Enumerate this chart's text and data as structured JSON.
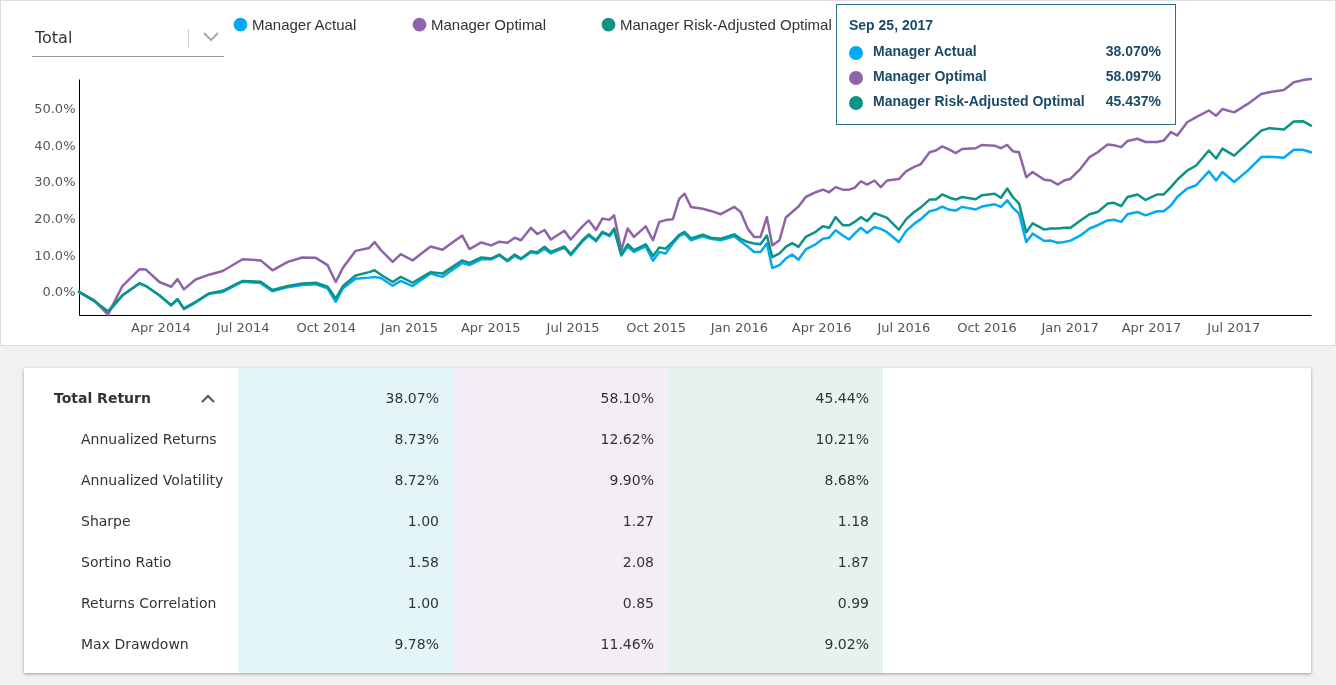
{
  "chart_data": [
    {
      "type": "line",
      "line_style": "solid",
      "legend": "top",
      "grid": false,
      "xlim": [
        "2014-01-01",
        "2017-09-25"
      ],
      "ylim": [
        -6.3,
        58.1
      ],
      "xticks": [
        {
          "value": "2014-04-01",
          "label": "Apr 2014"
        },
        {
          "value": "2014-07-01",
          "label": "Jul 2014"
        },
        {
          "value": "2014-10-01",
          "label": "Oct 2014"
        },
        {
          "value": "2015-01-01",
          "label": "Jan 2015"
        },
        {
          "value": "2015-04-01",
          "label": "Apr 2015"
        },
        {
          "value": "2015-07-01",
          "label": "Jul 2015"
        },
        {
          "value": "2015-10-01",
          "label": "Oct 2015"
        },
        {
          "value": "2016-01-01",
          "label": "Jan 2016"
        },
        {
          "value": "2016-04-01",
          "label": "Apr 2016"
        },
        {
          "value": "2016-07-01",
          "label": "Jul 2016"
        },
        {
          "value": "2016-10-01",
          "label": "Oct 2016"
        },
        {
          "value": "2017-01-01",
          "label": "Jan 2017"
        },
        {
          "value": "2017-04-01",
          "label": "Apr 2017"
        },
        {
          "value": "2017-07-01",
          "label": "Jul 2017"
        }
      ],
      "yticks": [
        {
          "value": 0,
          "label": "0.0%"
        },
        {
          "value": 10,
          "label": "10.0%"
        },
        {
          "value": 20,
          "label": "20.0%"
        },
        {
          "value": 30,
          "label": "30.0%"
        },
        {
          "value": 40,
          "label": "40.0%"
        },
        {
          "value": 50,
          "label": "50.0%"
        }
      ],
      "x": [
        "2014-01-01",
        "2014-01-18",
        "2014-02-02",
        "2014-02-18",
        "2014-03-09",
        "2014-03-16",
        "2014-03-31",
        "2014-04-13",
        "2014-04-20",
        "2014-04-27",
        "2014-05-10",
        "2014-05-25",
        "2014-06-09",
        "2014-07-01",
        "2014-07-21",
        "2014-08-03",
        "2014-08-20",
        "2014-09-05",
        "2014-09-20",
        "2014-10-03",
        "2014-10-12",
        "2014-10-20",
        "2014-11-03",
        "2014-11-18",
        "2014-11-24",
        "2014-12-01",
        "2014-12-14",
        "2014-12-23",
        "2015-01-05",
        "2015-01-25",
        "2015-02-07",
        "2015-03-01",
        "2015-03-09",
        "2015-03-22",
        "2015-04-02",
        "2015-04-11",
        "2015-04-20",
        "2015-04-28",
        "2015-05-05",
        "2015-05-16",
        "2015-05-23",
        "2015-05-31",
        "2015-06-07",
        "2015-06-22",
        "2015-06-29",
        "2015-07-12",
        "2015-07-19",
        "2015-07-27",
        "2015-08-03",
        "2015-08-11",
        "2015-08-16",
        "2015-08-24",
        "2015-08-31",
        "2015-09-07",
        "2015-09-20",
        "2015-09-28",
        "2015-10-05",
        "2015-10-12",
        "2015-10-20",
        "2015-10-27",
        "2015-11-02",
        "2015-11-09",
        "2015-11-22",
        "2015-12-01",
        "2015-12-12",
        "2015-12-27",
        "2016-01-03",
        "2016-01-11",
        "2016-01-18",
        "2016-01-25",
        "2016-02-01",
        "2016-02-07",
        "2016-02-15",
        "2016-02-22",
        "2016-02-29",
        "2016-03-07",
        "2016-03-15",
        "2016-03-26",
        "2016-04-03",
        "2016-04-10",
        "2016-04-17",
        "2016-04-25",
        "2016-05-02",
        "2016-05-08",
        "2016-05-15",
        "2016-05-22",
        "2016-05-30",
        "2016-06-06",
        "2016-06-13",
        "2016-06-26",
        "2016-07-04",
        "2016-07-13",
        "2016-07-20",
        "2016-07-30",
        "2016-08-06",
        "2016-08-13",
        "2016-08-21",
        "2016-08-28",
        "2016-09-04",
        "2016-09-19",
        "2016-09-26",
        "2016-10-10",
        "2016-10-17",
        "2016-10-24",
        "2016-10-30",
        "2016-11-06",
        "2016-11-14",
        "2016-11-21",
        "2016-12-04",
        "2016-12-11",
        "2016-12-19",
        "2016-12-26",
        "2017-01-02",
        "2017-01-13",
        "2017-01-23",
        "2017-02-01",
        "2017-02-12",
        "2017-02-19",
        "2017-02-27",
        "2017-03-06",
        "2017-03-17",
        "2017-03-26",
        "2017-04-08",
        "2017-04-15",
        "2017-04-23",
        "2017-04-30",
        "2017-05-11",
        "2017-05-21",
        "2017-06-04",
        "2017-06-12",
        "2017-06-19",
        "2017-07-02",
        "2017-07-17",
        "2017-08-01",
        "2017-08-10",
        "2017-08-26",
        "2017-09-06",
        "2017-09-16",
        "2017-09-25"
      ],
      "series": [
        {
          "name": "Manager Actual",
          "color": "#03a9f4",
          "values": [
            0,
            -2.5,
            -5.7,
            -1.0,
            2.4,
            1.6,
            -1.0,
            -3.7,
            -2.0,
            -4.7,
            -2.9,
            -0.5,
            0.0,
            2.8,
            2.4,
            0.2,
            1.3,
            1.9,
            2.1,
            1.0,
            -2.7,
            1.0,
            3.6,
            3.9,
            4.1,
            3.8,
            1.7,
            3.0,
            1.6,
            5.0,
            4.1,
            7.9,
            7.3,
            8.9,
            8.9,
            10.0,
            8.4,
            9.8,
            8.9,
            10.8,
            10.5,
            11.8,
            10.5,
            12.1,
            10.0,
            13.8,
            15.4,
            13.8,
            16.1,
            15.2,
            17.0,
            9.9,
            12.4,
            10.9,
            12.4,
            8.5,
            10.9,
            10.5,
            13.2,
            15.2,
            15.9,
            14.1,
            15.2,
            14.5,
            14.1,
            15.2,
            13.8,
            12.3,
            10.9,
            10.9,
            13.2,
            6.5,
            7.3,
            9.1,
            10.2,
            8.8,
            11.6,
            13.0,
            14.5,
            14.8,
            16.8,
            15.4,
            14.3,
            15.9,
            17.5,
            16.1,
            17.7,
            17.2,
            16.3,
            13.6,
            16.6,
            18.6,
            19.8,
            22.0,
            22.4,
            23.3,
            22.4,
            22.2,
            23.2,
            22.5,
            23.3,
            23.9,
            23.2,
            25.0,
            23.0,
            21.4,
            13.6,
            15.9,
            13.9,
            14.0,
            13.4,
            13.6,
            14.0,
            15.4,
            17.3,
            18.2,
            19.5,
            19.7,
            19.1,
            21.2,
            21.8,
            20.9,
            22.0,
            22.0,
            23.6,
            25.9,
            28.2,
            29.1,
            32.9,
            30.4,
            32.7,
            30.0,
            33.1,
            36.8,
            36.9,
            36.6,
            38.8,
            38.8,
            38.1
          ]
        },
        {
          "name": "Manager Optimal",
          "color": "#8e63aa",
          "values": [
            0,
            -2.3,
            -6.2,
            1.6,
            6.2,
            6.1,
            2.7,
            1.4,
            3.5,
            0.7,
            3.4,
            4.7,
            5.7,
            8.9,
            8.6,
            5.9,
            8.2,
            9.4,
            9.3,
            7.3,
            2.7,
            6.6,
            11.2,
            12.0,
            13.6,
            11.4,
            8.2,
            10.3,
            8.6,
            12.4,
            11.5,
            15.4,
            11.7,
            13.5,
            12.7,
            13.7,
            13.4,
            14.8,
            14.1,
            17.5,
            15.8,
            16.9,
            14.3,
            16.7,
            14.3,
            17.9,
            19.5,
            16.9,
            20.0,
            19.7,
            20.9,
            11.4,
            17.3,
            15.0,
            17.9,
            14.1,
            19.1,
            19.6,
            19.8,
            25.4,
            26.8,
            23.2,
            22.7,
            22.1,
            21.2,
            23.2,
            21.8,
            17.2,
            15.0,
            15.0,
            20.4,
            12.7,
            14.1,
            20.3,
            21.8,
            23.3,
            25.9,
            27.2,
            27.9,
            27.2,
            28.6,
            27.9,
            27.9,
            28.4,
            30.2,
            29.3,
            30.4,
            28.6,
            30.4,
            30.8,
            32.9,
            34.1,
            34.8,
            38.1,
            38.6,
            39.7,
            38.8,
            37.9,
            39.0,
            39.2,
            40.1,
            39.9,
            39.2,
            40.1,
            38.4,
            38.1,
            31.3,
            32.7,
            30.6,
            30.4,
            29.3,
            30.4,
            30.9,
            33.6,
            36.8,
            38.1,
            40.2,
            40.0,
            39.5,
            41.2,
            41.8,
            40.9,
            40.9,
            41.3,
            43.6,
            42.7,
            46.3,
            47.7,
            49.5,
            48.1,
            49.9,
            49.0,
            51.3,
            54.0,
            54.5,
            55.1,
            57.2,
            57.8,
            58.1
          ]
        },
        {
          "name": "Manager Risk-Adjusted Optimal",
          "color": "#0b9484",
          "values": [
            0,
            -2.5,
            -5.3,
            -0.9,
            2.3,
            1.6,
            -0.9,
            -3.6,
            -2.0,
            -4.5,
            -2.7,
            -0.4,
            0.3,
            3.0,
            2.8,
            0.5,
            1.6,
            2.3,
            2.5,
            1.4,
            -1.8,
            1.6,
            4.5,
            5.4,
            5.9,
            4.7,
            2.7,
            4.1,
            2.5,
            5.4,
            5.0,
            8.6,
            7.9,
            9.4,
            9.1,
            10.2,
            8.6,
            10.2,
            9.1,
            11.1,
            10.8,
            12.3,
            10.9,
            12.4,
            10.3,
            14.1,
            15.7,
            14.1,
            16.4,
            15.5,
            17.3,
            10.2,
            13.0,
            11.4,
            13.0,
            9.8,
            12.1,
            11.8,
            13.7,
            15.6,
            16.4,
            14.6,
            15.6,
            14.8,
            14.5,
            15.7,
            14.5,
            13.6,
            13.2,
            13.0,
            15.4,
            9.5,
            10.5,
            12.3,
            13.3,
            12.3,
            15.0,
            16.4,
            17.9,
            17.5,
            20.4,
            18.2,
            18.2,
            19.1,
            20.4,
            19.3,
            21.5,
            20.9,
            20.2,
            17.0,
            19.8,
            21.8,
            23.0,
            25.2,
            25.2,
            26.6,
            25.7,
            25.2,
            25.9,
            25.3,
            26.4,
            26.8,
            25.7,
            28.2,
            25.9,
            24.1,
            16.3,
            18.7,
            17.0,
            17.3,
            17.3,
            17.5,
            17.5,
            19.5,
            21.2,
            21.8,
            24.1,
            24.3,
            23.4,
            25.9,
            26.6,
            25.1,
            26.6,
            26.6,
            28.6,
            30.6,
            33.1,
            34.5,
            38.6,
            36.4,
            39.1,
            37.2,
            40.6,
            44.0,
            44.7,
            44.3,
            46.5,
            46.6,
            45.4
          ]
        }
      ],
      "annotations": [
        "Total",
        "Sep 25, 2017",
        "38.070%",
        "58.097%",
        "45.437%"
      ]
    },
    {
      "type": "other",
      "y_categories": [
        "Total Return",
        "Annualized Returns",
        "Annualized Volatility",
        "Sharpe",
        "Sortino Ratio",
        "Returns Correlation",
        "Max Drawdown"
      ],
      "colors": [
        "#e3f4fb",
        "#f3eef5",
        "#e5f2ef"
      ],
      "cell_labels": [
        [
          "38.07%",
          "58.10%",
          "45.44%"
        ],
        [
          "8.73%",
          "12.62%",
          "10.21%"
        ],
        [
          "8.72%",
          "9.90%",
          "8.68%"
        ],
        [
          "1.00",
          "1.27",
          "1.18"
        ],
        [
          "1.58",
          "2.08",
          "1.87"
        ],
        [
          "1.00",
          "0.85",
          "0.99"
        ],
        [
          "9.78%",
          "11.46%",
          "9.02%"
        ]
      ]
    }
  ]
}
